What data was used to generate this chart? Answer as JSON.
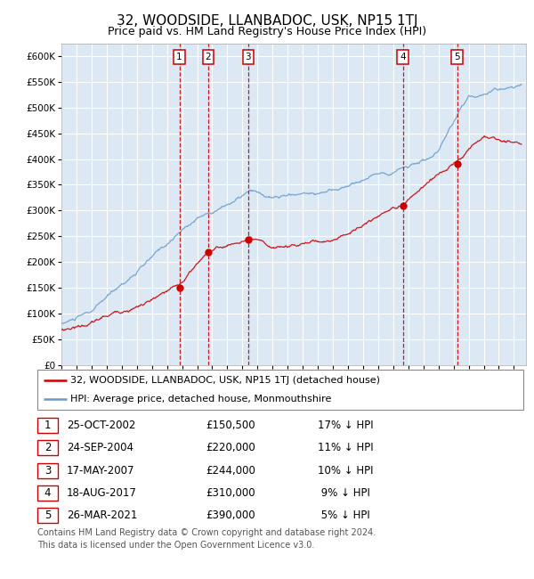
{
  "title": "32, WOODSIDE, LLANBADOC, USK, NP15 1TJ",
  "subtitle": "Price paid vs. HM Land Registry's House Price Index (HPI)",
  "ytick_values": [
    0,
    50000,
    100000,
    150000,
    200000,
    250000,
    300000,
    350000,
    400000,
    450000,
    500000,
    550000,
    600000
  ],
  "ylim": [
    0,
    625000
  ],
  "xlim_start": 1995.0,
  "xlim_end": 2025.8,
  "plot_bg_color": "#dce9f5",
  "grid_color": "#ffffff",
  "hpi_line_color": "#6699cc",
  "price_line_color": "#cc0000",
  "sale_marker_color": "#cc0000",
  "vline_color": "#cc0000",
  "sale_points": [
    {
      "year": 2002.82,
      "price": 150500,
      "label": "1"
    },
    {
      "year": 2004.73,
      "price": 220000,
      "label": "2"
    },
    {
      "year": 2007.38,
      "price": 244000,
      "label": "3"
    },
    {
      "year": 2017.63,
      "price": 310000,
      "label": "4"
    },
    {
      "year": 2021.23,
      "price": 390000,
      "label": "5"
    }
  ],
  "legend_entries": [
    "32, WOODSIDE, LLANBADOC, USK, NP15 1TJ (detached house)",
    "HPI: Average price, detached house, Monmouthshire"
  ],
  "table_rows": [
    {
      "num": "1",
      "date": "25-OCT-2002",
      "price": "£150,500",
      "pct": "17% ↓ HPI"
    },
    {
      "num": "2",
      "date": "24-SEP-2004",
      "price": "£220,000",
      "pct": "11% ↓ HPI"
    },
    {
      "num": "3",
      "date": "17-MAY-2007",
      "price": "£244,000",
      "pct": "10% ↓ HPI"
    },
    {
      "num": "4",
      "date": "18-AUG-2017",
      "price": "£310,000",
      "pct": " 9% ↓ HPI"
    },
    {
      "num": "5",
      "date": "26-MAR-2021",
      "price": "£390,000",
      "pct": " 5% ↓ HPI"
    }
  ],
  "footnote": "Contains HM Land Registry data © Crown copyright and database right 2024.\nThis data is licensed under the Open Government Licence v3.0.",
  "title_fontsize": 11,
  "subtitle_fontsize": 9,
  "tick_fontsize": 7.5,
  "legend_fontsize": 8,
  "table_fontsize": 8.5,
  "footnote_fontsize": 7
}
